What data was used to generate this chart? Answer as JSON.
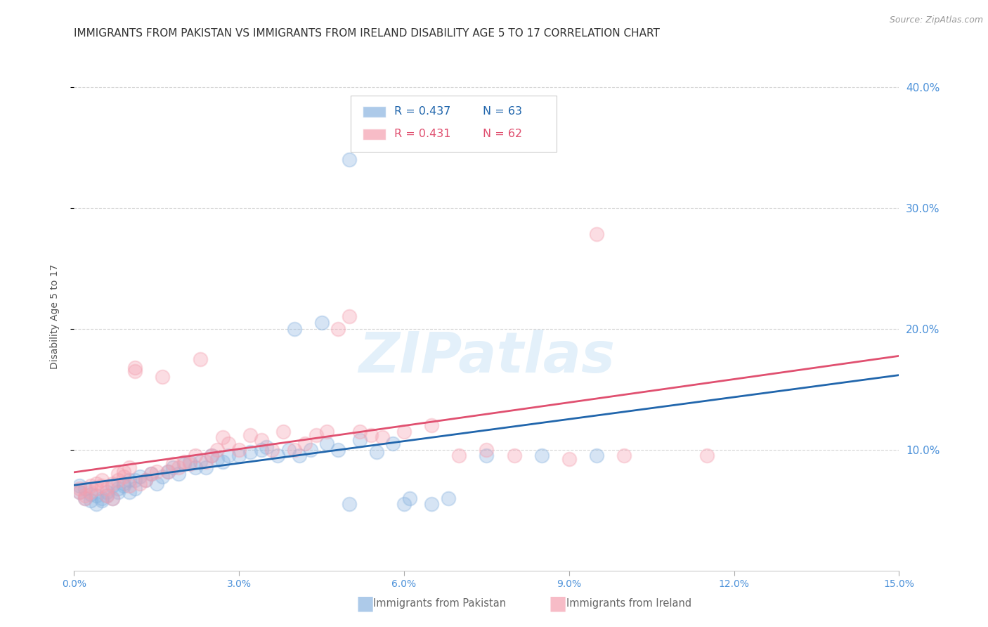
{
  "title": "IMMIGRANTS FROM PAKISTAN VS IMMIGRANTS FROM IRELAND DISABILITY AGE 5 TO 17 CORRELATION CHART",
  "source": "Source: ZipAtlas.com",
  "ylabel": "Disability Age 5 to 17",
  "xlim": [
    0.0,
    0.15
  ],
  "ylim": [
    0.0,
    0.42
  ],
  "xticks": [
    0.0,
    0.03,
    0.06,
    0.09,
    0.12,
    0.15
  ],
  "yticks": [
    0.1,
    0.2,
    0.3,
    0.4
  ],
  "pakistan_color": "#8ab4e0",
  "ireland_color": "#f4a0b0",
  "pakistan_line_color": "#2166ac",
  "ireland_line_color": "#e05070",
  "legend_R_pakistan": "R = 0.437",
  "legend_N_pakistan": "N = 63",
  "legend_R_ireland": "R = 0.431",
  "legend_N_ireland": "N = 62",
  "pakistan_x": [
    0.001,
    0.001,
    0.002,
    0.002,
    0.003,
    0.003,
    0.004,
    0.004,
    0.005,
    0.005,
    0.006,
    0.006,
    0.007,
    0.007,
    0.008,
    0.008,
    0.009,
    0.009,
    0.01,
    0.01,
    0.011,
    0.011,
    0.012,
    0.013,
    0.014,
    0.015,
    0.016,
    0.017,
    0.018,
    0.019,
    0.02,
    0.021,
    0.022,
    0.023,
    0.024,
    0.025,
    0.026,
    0.027,
    0.028,
    0.03,
    0.032,
    0.034,
    0.035,
    0.037,
    0.039,
    0.041,
    0.043,
    0.046,
    0.048,
    0.052,
    0.055,
    0.058,
    0.061,
    0.065,
    0.068,
    0.04,
    0.045,
    0.05,
    0.06,
    0.075,
    0.085,
    0.095,
    0.05
  ],
  "pakistan_y": [
    0.07,
    0.065,
    0.068,
    0.06,
    0.063,
    0.058,
    0.062,
    0.055,
    0.06,
    0.058,
    0.065,
    0.062,
    0.07,
    0.06,
    0.068,
    0.065,
    0.072,
    0.07,
    0.075,
    0.065,
    0.068,
    0.075,
    0.078,
    0.075,
    0.08,
    0.072,
    0.078,
    0.082,
    0.085,
    0.08,
    0.088,
    0.09,
    0.085,
    0.09,
    0.085,
    0.095,
    0.092,
    0.09,
    0.095,
    0.095,
    0.098,
    0.1,
    0.102,
    0.095,
    0.1,
    0.095,
    0.1,
    0.105,
    0.1,
    0.108,
    0.098,
    0.105,
    0.06,
    0.055,
    0.06,
    0.2,
    0.205,
    0.055,
    0.055,
    0.095,
    0.095,
    0.095,
    0.34
  ],
  "ireland_x": [
    0.001,
    0.001,
    0.002,
    0.002,
    0.003,
    0.003,
    0.004,
    0.004,
    0.005,
    0.005,
    0.006,
    0.006,
    0.007,
    0.007,
    0.008,
    0.008,
    0.009,
    0.009,
    0.01,
    0.01,
    0.011,
    0.011,
    0.012,
    0.013,
    0.014,
    0.015,
    0.016,
    0.017,
    0.018,
    0.019,
    0.02,
    0.021,
    0.022,
    0.023,
    0.024,
    0.025,
    0.026,
    0.027,
    0.028,
    0.03,
    0.032,
    0.034,
    0.036,
    0.038,
    0.04,
    0.042,
    0.044,
    0.046,
    0.048,
    0.05,
    0.052,
    0.054,
    0.056,
    0.06,
    0.065,
    0.07,
    0.075,
    0.08,
    0.09,
    0.095,
    0.1,
    0.115
  ],
  "ireland_y": [
    0.065,
    0.068,
    0.062,
    0.06,
    0.065,
    0.07,
    0.072,
    0.068,
    0.075,
    0.07,
    0.062,
    0.068,
    0.072,
    0.06,
    0.075,
    0.08,
    0.082,
    0.078,
    0.085,
    0.07,
    0.165,
    0.168,
    0.072,
    0.075,
    0.08,
    0.082,
    0.16,
    0.082,
    0.088,
    0.085,
    0.09,
    0.088,
    0.095,
    0.175,
    0.09,
    0.095,
    0.1,
    0.11,
    0.105,
    0.1,
    0.112,
    0.108,
    0.1,
    0.115,
    0.1,
    0.105,
    0.112,
    0.115,
    0.2,
    0.21,
    0.115,
    0.112,
    0.11,
    0.115,
    0.12,
    0.095,
    0.1,
    0.095,
    0.092,
    0.278,
    0.095,
    0.095
  ],
  "watermark_text": "ZIPatlas",
  "background_color": "#ffffff",
  "grid_color": "#cccccc",
  "axis_color": "#4a90d9",
  "title_color": "#333333",
  "title_fontsize": 11,
  "pakistan_line_intercept": 0.055,
  "pakistan_line_slope": 1.0,
  "ireland_line_intercept": 0.07,
  "ireland_line_slope": 1.0
}
